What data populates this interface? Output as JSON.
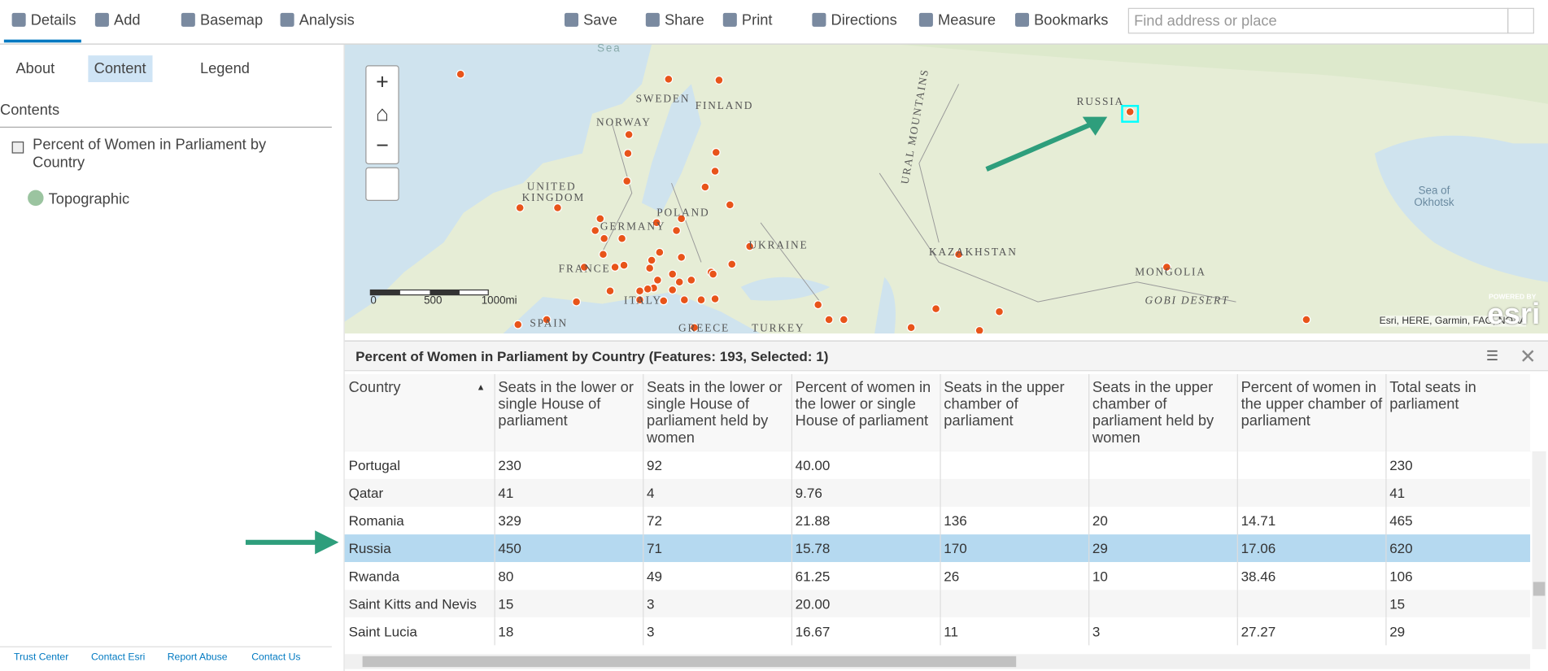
{
  "toolbar": {
    "left": [
      "Details",
      "Add",
      "Basemap",
      "Analysis"
    ],
    "right": [
      "Save",
      "Share",
      "Print",
      "Directions",
      "Measure",
      "Bookmarks"
    ],
    "search_placeholder": "Find address or place"
  },
  "sidebar": {
    "tabs": [
      "About",
      "Content",
      "Legend"
    ],
    "heading": "Contents",
    "layers": [
      "Percent of Women in Parliament by Country",
      "Topographic"
    ],
    "footer": [
      "Trust Center",
      "Contact Esri",
      "Report Abuse",
      "Contact Us"
    ]
  },
  "map": {
    "labels": [
      "SWEDEN",
      "FINLAND",
      "NORWAY",
      "UNITED KINGDOM",
      "POLAND",
      "GERMANY",
      "UKRAINE",
      "FRANCE",
      "ITALY",
      "SPAIN",
      "GREECE",
      "TURKEY",
      "RUSSIA",
      "KAZAKHSTAN",
      "MONGOLIA",
      "GOBI DESERT",
      "URAL MOUNTAINS",
      "Sea of Okhotsk",
      "Sea"
    ],
    "scale": [
      "0",
      "500",
      "1000mi"
    ],
    "attribution": "Esri, HERE, Garmin, FAO, NOAA",
    "brand_small": "POWERED BY",
    "brand": "esri"
  },
  "table": {
    "title": "Percent of Women in Parliament by Country (Features: 193, Selected: 1)",
    "columns": [
      "Country",
      "Seats in the lower or single House of parliament",
      "Seats in the lower or single House of parliament held by women",
      "Percent of women in the lower or single House of parliament",
      "Seats in the upper chamber of parliament",
      "Seats in the upper chamber of parliament held by women",
      "Percent of women in the upper chamber of parliament",
      "Total seats in parliament"
    ],
    "rows": [
      [
        "Portugal",
        "230",
        "92",
        "40.00",
        null,
        null,
        null,
        "230"
      ],
      [
        "Qatar",
        "41",
        "4",
        "9.76",
        null,
        null,
        null,
        "41"
      ],
      [
        "Romania",
        "329",
        "72",
        "21.88",
        "136",
        "20",
        "14.71",
        "465"
      ],
      [
        "Russia",
        "450",
        "71",
        "15.78",
        "170",
        "29",
        "17.06",
        "620"
      ],
      [
        "Rwanda",
        "80",
        "49",
        "61.25",
        "26",
        "10",
        "38.46",
        "106"
      ],
      [
        "Saint Kitts and Nevis",
        "15",
        "3",
        "20.00",
        null,
        null,
        null,
        "15"
      ],
      [
        "Saint Lucia",
        "18",
        "3",
        "16.67",
        "11",
        "3",
        "27.27",
        "29"
      ]
    ],
    "selected_row": 3
  }
}
